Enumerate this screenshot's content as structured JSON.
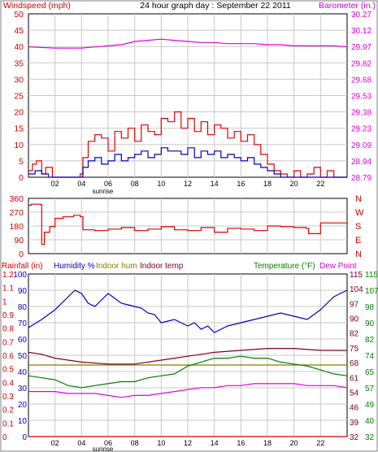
{
  "header": {
    "left_label": "Windspeed (mph)",
    "title": "24 hour graph day : September 22 2011",
    "right_label": "Barometer (in.)"
  },
  "colors": {
    "windspeed": "#e00000",
    "gust": "#e00000",
    "avg_wind": "#0000c0",
    "barometer": "#e000e0",
    "direction": "#e00000",
    "rainfall": "#e00000",
    "humidity": "#0000c0",
    "indoor_hum": "#7f7f00",
    "indoor_temp": "#800020",
    "temperature": "#008000",
    "dew_point": "#e000e0",
    "grid": "#c8c8c8",
    "frame": "#000000",
    "label_red": "#d00000",
    "label_green": "#008000"
  },
  "x_axis": {
    "ticks": [
      "02",
      "04",
      "06",
      "08",
      "10",
      "12",
      "14",
      "16",
      "18",
      "20",
      "22"
    ],
    "sunrise_label": "sunrise",
    "sunrise_hour": 5.6,
    "sunset_hour": 19.0,
    "range": [
      0,
      24
    ]
  },
  "chart_data": [
    {
      "type": "line",
      "name": "wind-barometer",
      "left_axis": {
        "label": "Windspeed (mph)",
        "ticks": [
          0,
          5,
          10,
          15,
          20,
          25,
          30,
          35,
          40,
          45,
          50
        ],
        "ylim": [
          0,
          50
        ]
      },
      "right_axis": {
        "label": "Barometer (in.)",
        "ticks": [
          "28.79",
          "28.94",
          "29.09",
          "29.23",
          "29.38",
          "29.53",
          "29.68",
          "29.82",
          "29.97",
          "30.12",
          "30.27"
        ],
        "ylim": [
          28.79,
          30.27
        ]
      },
      "series": [
        {
          "name": "Barometer",
          "axis": "right",
          "x": [
            0,
            2,
            4,
            5,
            6,
            7,
            8,
            9,
            10,
            11,
            12,
            13,
            14,
            15,
            16,
            17,
            18,
            19,
            20,
            21,
            22,
            23,
            24
          ],
          "y": [
            29.97,
            29.96,
            29.96,
            29.97,
            29.98,
            29.99,
            30.02,
            30.03,
            30.04,
            30.03,
            30.02,
            30.01,
            30.01,
            30.0,
            30.0,
            30.0,
            29.99,
            29.99,
            29.98,
            29.98,
            29.98,
            29.98,
            29.97
          ]
        },
        {
          "x": [
            0,
            0.3,
            0.6,
            1,
            1.3,
            1.8,
            2,
            3,
            3.9,
            4.1,
            4.5,
            5,
            5.5,
            6,
            6.5,
            7,
            7.5,
            8,
            8.5,
            9,
            9.5,
            10,
            10.5,
            11,
            11.5,
            12,
            12.5,
            13,
            13.5,
            14,
            14.5,
            15,
            15.5,
            16,
            16.5,
            17,
            17.5,
            18,
            18.5,
            19,
            19.5,
            20,
            20.5,
            21,
            21.5,
            22,
            22.5,
            23,
            23.5,
            24
          ],
          "y": [
            2,
            4,
            5,
            1,
            3,
            0,
            0,
            0,
            1,
            6,
            11,
            13,
            12,
            8,
            14,
            12,
            15,
            11,
            16,
            14,
            13,
            18,
            17,
            20,
            15,
            18,
            14,
            17,
            13,
            16,
            15,
            12,
            14,
            11,
            13,
            10,
            7,
            4,
            2,
            1,
            0,
            2,
            0,
            1,
            3,
            0,
            2,
            0,
            0,
            0
          ]
        },
        {
          "x": [
            0,
            0.5,
            1,
            1.5,
            2,
            3,
            3.9,
            4.1,
            4.5,
            5,
            5.5,
            6,
            6.5,
            7,
            7.5,
            8,
            8.5,
            9,
            9.5,
            10,
            10.5,
            11,
            11.5,
            12,
            12.5,
            13,
            13.5,
            14,
            14.5,
            15,
            15.5,
            16,
            16.5,
            17,
            17.5,
            18,
            18.5,
            19,
            20,
            21,
            22,
            23,
            24
          ],
          "y": [
            1,
            2,
            1,
            0,
            0,
            0,
            0,
            3,
            5,
            6,
            4,
            5,
            7,
            5,
            6,
            7,
            8,
            6,
            7,
            9,
            8,
            8,
            7,
            9,
            6,
            8,
            7,
            8,
            6,
            7,
            6,
            5,
            6,
            4,
            3,
            2,
            1,
            0,
            0,
            0,
            0,
            0,
            0
          ]
        }
      ]
    },
    {
      "type": "line",
      "name": "wind-direction",
      "left_axis": {
        "ticks": [
          0,
          90,
          180,
          270,
          360
        ],
        "ylim": [
          0,
          360
        ]
      },
      "right_axis": {
        "labels": [
          "N",
          "W",
          "S",
          "E",
          "N"
        ]
      },
      "series": [
        {
          "x": [
            0,
            0.2,
            0.9,
            1.0,
            1.2,
            1.6,
            2,
            2.6,
            3.4,
            3.9,
            4.1,
            5,
            6,
            7,
            8,
            9,
            10,
            11,
            12,
            13,
            14,
            15,
            16,
            17,
            18,
            19,
            20,
            20.9,
            21.1,
            21.8,
            22,
            23,
            24
          ],
          "y": [
            315,
            322,
            320,
            60,
            140,
            175,
            230,
            240,
            250,
            240,
            155,
            150,
            160,
            170,
            150,
            160,
            175,
            155,
            150,
            170,
            140,
            165,
            160,
            150,
            180,
            175,
            170,
            165,
            130,
            130,
            200,
            200,
            200
          ]
        }
      ]
    },
    {
      "type": "line",
      "name": "rain-humidity-temperature",
      "header_left": [
        "Rainfall (in)",
        "Humidity %",
        "Indoor hum",
        "Indoor temp"
      ],
      "header_right": [
        "Temperature (°F)",
        "Dew Point"
      ],
      "rain_axis": {
        "ticks": [
          "0",
          "0.1",
          "0.2",
          "0.3",
          "0.4",
          "0.5",
          "0.6",
          "0.7",
          "0.8",
          "0.9",
          "1",
          "1.1",
          "1.2"
        ],
        "ylim": [
          0,
          1.2
        ]
      },
      "humidity_axis": {
        "ticks": [
          0,
          10,
          20,
          30,
          40,
          50,
          60,
          70,
          80,
          90,
          100
        ],
        "ylim": [
          0,
          100
        ]
      },
      "temp_axis_inner": {
        "ticks": [
          32,
          39,
          46,
          54,
          61,
          68,
          75,
          82,
          90,
          97,
          104,
          115
        ],
        "ylim": [
          32,
          115
        ]
      },
      "temp_axis_outer": {
        "ticks": [
          32,
          40,
          49,
          57,
          65,
          74,
          82,
          90,
          98,
          107,
          115
        ],
        "ylim": [
          32,
          115
        ]
      },
      "series": [
        {
          "x": [
            0,
            24
          ],
          "y": [
            0,
            0
          ]
        },
        {
          "x": [
            0,
            1,
            2,
            3,
            3.5,
            4,
            4.5,
            5,
            5.5,
            6,
            6.5,
            7,
            7.5,
            8,
            8.5,
            9,
            9.5,
            10,
            10.5,
            11,
            11.5,
            12,
            12.5,
            13,
            13.5,
            14,
            14.5,
            15,
            16,
            17,
            18,
            19,
            20,
            21,
            22,
            22.5,
            23,
            23.5,
            24
          ],
          "y": [
            67,
            72,
            78,
            86,
            90,
            88,
            82,
            80,
            84,
            88,
            85,
            82,
            81,
            80,
            79,
            76,
            75,
            70,
            71,
            72,
            70,
            68,
            70,
            66,
            68,
            64,
            66,
            68,
            70,
            72,
            74,
            76,
            74,
            72,
            78,
            82,
            86,
            88,
            90
          ]
        },
        {
          "x": [
            0,
            24
          ],
          "y": [
            44,
            44
          ]
        },
        {
          "x": [
            0,
            1,
            2,
            4,
            6,
            8,
            10,
            11,
            12,
            14,
            16,
            18,
            20,
            22,
            24
          ],
          "y": [
            75,
            74,
            72,
            70,
            69,
            69,
            71,
            72,
            73,
            75,
            76,
            77,
            77,
            76,
            76
          ]
        },
        {
          "x": [
            0,
            1,
            2,
            3,
            4,
            5,
            6,
            7,
            8,
            9,
            10,
            11,
            12,
            13,
            14,
            15,
            16,
            17,
            18,
            19,
            20,
            21,
            22,
            23,
            24
          ],
          "y": [
            63,
            62,
            61,
            58,
            57,
            58,
            59,
            60,
            60,
            62,
            63,
            64,
            68,
            70,
            72,
            72,
            73,
            72,
            72,
            70,
            69,
            68,
            66,
            64,
            63
          ]
        },
        {
          "x": [
            0,
            1,
            2,
            3,
            4,
            5,
            6,
            7,
            8,
            9,
            10,
            11,
            12,
            13,
            14,
            15,
            16,
            17,
            18,
            19,
            20,
            21,
            22,
            23,
            24
          ],
          "y": [
            55,
            55,
            55,
            54,
            54,
            54,
            53,
            52,
            53,
            53,
            54,
            55,
            56,
            57,
            57,
            58,
            58,
            59,
            59,
            59,
            59,
            58,
            58,
            58,
            57
          ]
        }
      ]
    }
  ]
}
